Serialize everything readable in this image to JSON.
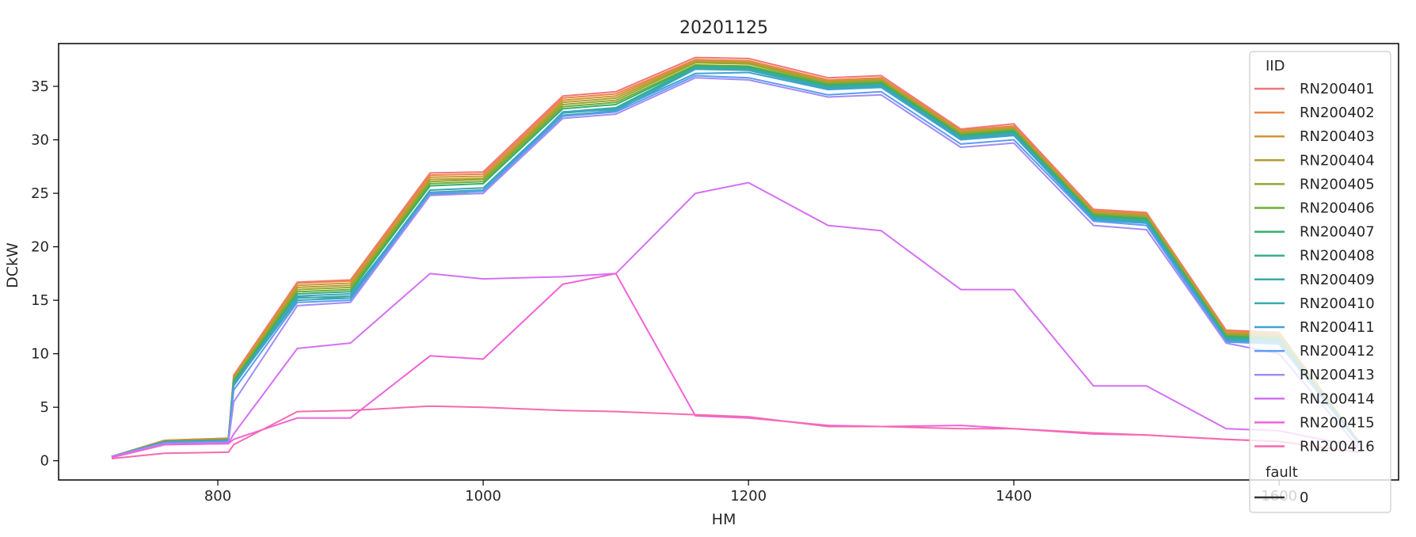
{
  "chart_data": {
    "type": "line",
    "title": "20201125",
    "xlabel": "HM",
    "ylabel": "DCkW",
    "xlim": [
      680,
      1690
    ],
    "ylim": [
      -1.8,
      39
    ],
    "xticks": [
      800,
      1000,
      1200,
      1400,
      1600
    ],
    "yticks": [
      0,
      5,
      10,
      15,
      20,
      25,
      30,
      35
    ],
    "grid": false,
    "legend": {
      "placement": "right",
      "hue_title": "IID",
      "style_title": "fault",
      "style_entries": [
        "0"
      ]
    },
    "series_colors": [
      "#f37578",
      "#ec8447",
      "#d09634",
      "#b59d33",
      "#98a533",
      "#6bae34",
      "#37af6c",
      "#39ac91",
      "#3aaaa4",
      "#3ba8b7",
      "#3ea3d2",
      "#5c9cf4",
      "#a38cf4",
      "#d570f3",
      "#f263d9",
      "#f56bad"
    ],
    "x": [
      720,
      760,
      808,
      812,
      860,
      900,
      960,
      1000,
      1060,
      1100,
      1160,
      1200,
      1260,
      1300,
      1360,
      1400,
      1460,
      1500,
      1560,
      1600,
      1660
    ],
    "series": [
      {
        "name": "RN200401",
        "values": [
          0.4,
          1.9,
          2.1,
          8.0,
          16.7,
          16.9,
          26.9,
          27.0,
          34.1,
          34.5,
          37.7,
          37.6,
          35.8,
          36.0,
          31.0,
          31.5,
          23.5,
          23.2,
          12.2,
          12.0,
          1.8
        ]
      },
      {
        "name": "RN200402",
        "values": [
          0.4,
          1.9,
          2.1,
          7.9,
          16.6,
          16.8,
          26.7,
          26.8,
          33.9,
          34.3,
          37.5,
          37.4,
          35.6,
          35.8,
          30.9,
          31.3,
          23.4,
          23.1,
          12.1,
          11.9,
          1.8
        ]
      },
      {
        "name": "RN200403",
        "values": [
          0.4,
          1.9,
          2.0,
          7.8,
          16.4,
          16.6,
          26.5,
          26.6,
          33.7,
          34.1,
          37.4,
          37.3,
          35.5,
          35.7,
          30.8,
          31.2,
          23.3,
          23.0,
          12.0,
          11.8,
          1.8
        ]
      },
      {
        "name": "RN200404",
        "values": [
          0.4,
          1.8,
          2.0,
          7.7,
          16.2,
          16.4,
          26.3,
          26.4,
          33.5,
          33.9,
          37.3,
          37.2,
          35.4,
          35.6,
          30.7,
          31.1,
          23.2,
          22.9,
          11.9,
          11.7,
          1.8
        ]
      },
      {
        "name": "RN200405",
        "values": [
          0.4,
          1.8,
          2.0,
          7.6,
          16.0,
          16.2,
          26.1,
          26.3,
          33.3,
          33.7,
          37.2,
          37.1,
          35.3,
          35.5,
          30.6,
          31.0,
          23.1,
          22.8,
          11.8,
          11.6,
          1.7
        ]
      },
      {
        "name": "RN200406",
        "values": [
          0.4,
          1.8,
          2.0,
          7.5,
          15.8,
          16.0,
          25.9,
          26.1,
          33.1,
          33.5,
          37.0,
          36.9,
          35.2,
          35.4,
          30.5,
          30.9,
          23.0,
          22.7,
          11.7,
          11.5,
          1.7
        ]
      },
      {
        "name": "RN200407",
        "values": [
          0.4,
          1.8,
          1.9,
          7.4,
          15.6,
          15.8,
          25.7,
          25.9,
          32.9,
          33.3,
          36.9,
          36.8,
          35.1,
          35.3,
          30.4,
          30.8,
          22.9,
          22.6,
          11.6,
          11.4,
          1.7
        ]
      },
      {
        "name": "RN200408",
        "values": [
          0.4,
          1.8,
          1.9,
          7.3,
          15.3,
          15.2,
          24.9,
          25.0,
          32.6,
          33.0,
          36.8,
          36.7,
          35.0,
          35.2,
          30.3,
          30.7,
          22.8,
          22.5,
          11.5,
          11.3,
          1.7
        ]
      },
      {
        "name": "RN200409",
        "values": [
          0.4,
          1.7,
          1.9,
          7.2,
          15.2,
          15.4,
          25.3,
          25.5,
          32.5,
          32.9,
          36.7,
          36.6,
          34.9,
          35.1,
          30.2,
          30.6,
          22.7,
          22.4,
          11.4,
          11.2,
          1.7
        ]
      },
      {
        "name": "RN200410",
        "values": [
          0.4,
          1.7,
          1.9,
          7.1,
          15.0,
          15.2,
          25.1,
          25.3,
          32.3,
          32.7,
          36.6,
          36.5,
          34.8,
          35.0,
          30.1,
          30.5,
          22.6,
          22.3,
          11.3,
          11.1,
          1.7
        ]
      },
      {
        "name": "RN200411",
        "values": [
          0.4,
          1.7,
          1.8,
          7.0,
          15.4,
          15.6,
          25.0,
          25.2,
          32.6,
          32.8,
          36.2,
          36.3,
          34.7,
          34.9,
          30.0,
          30.4,
          22.5,
          22.2,
          11.2,
          11.0,
          1.6
        ]
      },
      {
        "name": "RN200412",
        "values": [
          0.4,
          1.7,
          1.8,
          6.6,
          14.8,
          15.0,
          25.0,
          25.2,
          32.2,
          32.6,
          36.0,
          35.8,
          34.2,
          34.5,
          29.6,
          30.0,
          22.4,
          22.0,
          11.1,
          10.9,
          1.6
        ]
      },
      {
        "name": "RN200413",
        "values": [
          0.4,
          1.6,
          1.7,
          5.5,
          14.5,
          14.8,
          24.8,
          25.0,
          32.0,
          32.4,
          35.8,
          35.6,
          34.0,
          34.2,
          29.3,
          29.7,
          22.0,
          21.6,
          11.0,
          10.0,
          1.2
        ]
      },
      {
        "name": "RN200414",
        "values": [
          0.3,
          1.5,
          1.6,
          2.5,
          10.5,
          11.0,
          17.5,
          17.0,
          17.2,
          17.5,
          25.0,
          26.0,
          22.0,
          21.5,
          16.0,
          16.0,
          7.0,
          7.0,
          3.0,
          2.8,
          1.3
        ]
      },
      {
        "name": "RN200415",
        "values": [
          0.3,
          1.5,
          1.6,
          2.0,
          4.0,
          4.0,
          9.8,
          9.5,
          16.5,
          17.5,
          4.2,
          4.0,
          3.3,
          3.2,
          3.3,
          3.0,
          2.5,
          2.4,
          2.0,
          1.8,
          0.8
        ]
      },
      {
        "name": "RN200416",
        "values": [
          0.2,
          0.7,
          0.8,
          1.5,
          4.6,
          4.7,
          5.1,
          5.0,
          4.7,
          4.6,
          4.3,
          4.1,
          3.2,
          3.2,
          3.0,
          3.0,
          2.6,
          2.4,
          2.0,
          1.8,
          0.8
        ]
      }
    ]
  }
}
